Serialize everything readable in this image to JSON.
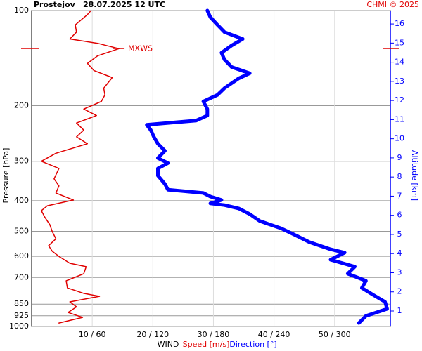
{
  "chart_data": {
    "type": "profile",
    "title": "Prostejov",
    "subtitle": "28.07.2025 12 UTC",
    "credit": "CHMI © 2025",
    "x_label": "WIND",
    "y_label": "Pressure [hPa]",
    "y2_label": "Altitude [km]",
    "ylim": [
      100,
      1000
    ],
    "y_log": true,
    "y_reversed": true,
    "yticks": [
      100,
      200,
      300,
      400,
      500,
      600,
      700,
      850,
      925,
      1000
    ],
    "xlim": [
      0,
      59.2
    ],
    "x2lim": [
      0,
      355.2
    ],
    "xticks": [
      {
        "value": 10,
        "label": "10 / 60"
      },
      {
        "value": 20,
        "label": "20 / 120"
      },
      {
        "value": 30,
        "label": "30 / 180"
      },
      {
        "value": 40,
        "label": "40 / 240"
      },
      {
        "value": 50,
        "label": "50 / 300"
      }
    ],
    "y2lim": [
      0.193,
      16.7
    ],
    "y2ticks": [
      1,
      2,
      3,
      4,
      5,
      6,
      7,
      8,
      9,
      10,
      11,
      12,
      13,
      14,
      15,
      16
    ],
    "y2_color": "#0000ff",
    "grid": true,
    "annotation": {
      "label": "MXWS",
      "pressure": 132,
      "value": 14.4,
      "color": "#e00000"
    },
    "series": [
      {
        "name": "Speed [m/s]",
        "color": "#e00000",
        "axis": "x",
        "pressure": [
          975,
          936,
          903,
          867,
          836,
          803,
          786,
          755,
          717,
          681,
          647,
          631,
          600,
          578,
          555,
          528,
          501,
          476,
          452,
          430,
          415,
          398,
          378,
          359,
          341,
          316,
          300,
          283,
          264,
          251,
          239,
          227,
          215,
          205,
          194,
          185,
          176,
          163,
          155,
          147,
          139,
          132,
          127,
          123,
          117,
          111,
          103,
          100
        ],
        "values": [
          4.5,
          8.4,
          6.0,
          7.4,
          6.3,
          11.2,
          8.6,
          5.9,
          5.7,
          8.6,
          9.0,
          6.3,
          4.5,
          3.4,
          2.8,
          4.0,
          3.4,
          3.0,
          2.2,
          1.6,
          2.6,
          6.9,
          4.0,
          4.5,
          3.7,
          4.5,
          1.6,
          4.0,
          9.2,
          7.4,
          8.6,
          7.4,
          10.7,
          8.6,
          11.5,
          12.1,
          11.9,
          13.3,
          10.3,
          9.2,
          10.9,
          14.4,
          10.9,
          6.3,
          7.4,
          7.2,
          9.2,
          9.8
        ]
      },
      {
        "name": "Direction [°]",
        "color": "#0000ff",
        "axis": "x2",
        "pressure": [
          975,
          926,
          880,
          836,
          794,
          755,
          717,
          681,
          647,
          615,
          584,
          570,
          541,
          514,
          489,
          464,
          441,
          423,
          413,
          408,
          398,
          388,
          378,
          369,
          354,
          333,
          316,
          304,
          293,
          278,
          264,
          251,
          239,
          230,
          223,
          215,
          205,
          194,
          185,
          176,
          164,
          158,
          151,
          143,
          136,
          129,
          123,
          117,
          111,
          105,
          100
        ],
        "values": [
          324,
          331,
          352,
          350,
          338,
          327,
          331,
          313,
          320,
          296,
          310,
          296,
          275,
          261,
          247,
          226,
          216,
          205,
          191,
          177,
          188,
          177,
          170,
          135,
          132,
          125,
          125,
          135,
          125,
          132,
          125,
          121,
          118,
          114,
          163,
          174,
          174,
          170,
          184,
          191,
          205,
          216,
          198,
          191,
          188,
          198,
          209,
          191,
          184,
          177,
          174
        ]
      }
    ]
  }
}
